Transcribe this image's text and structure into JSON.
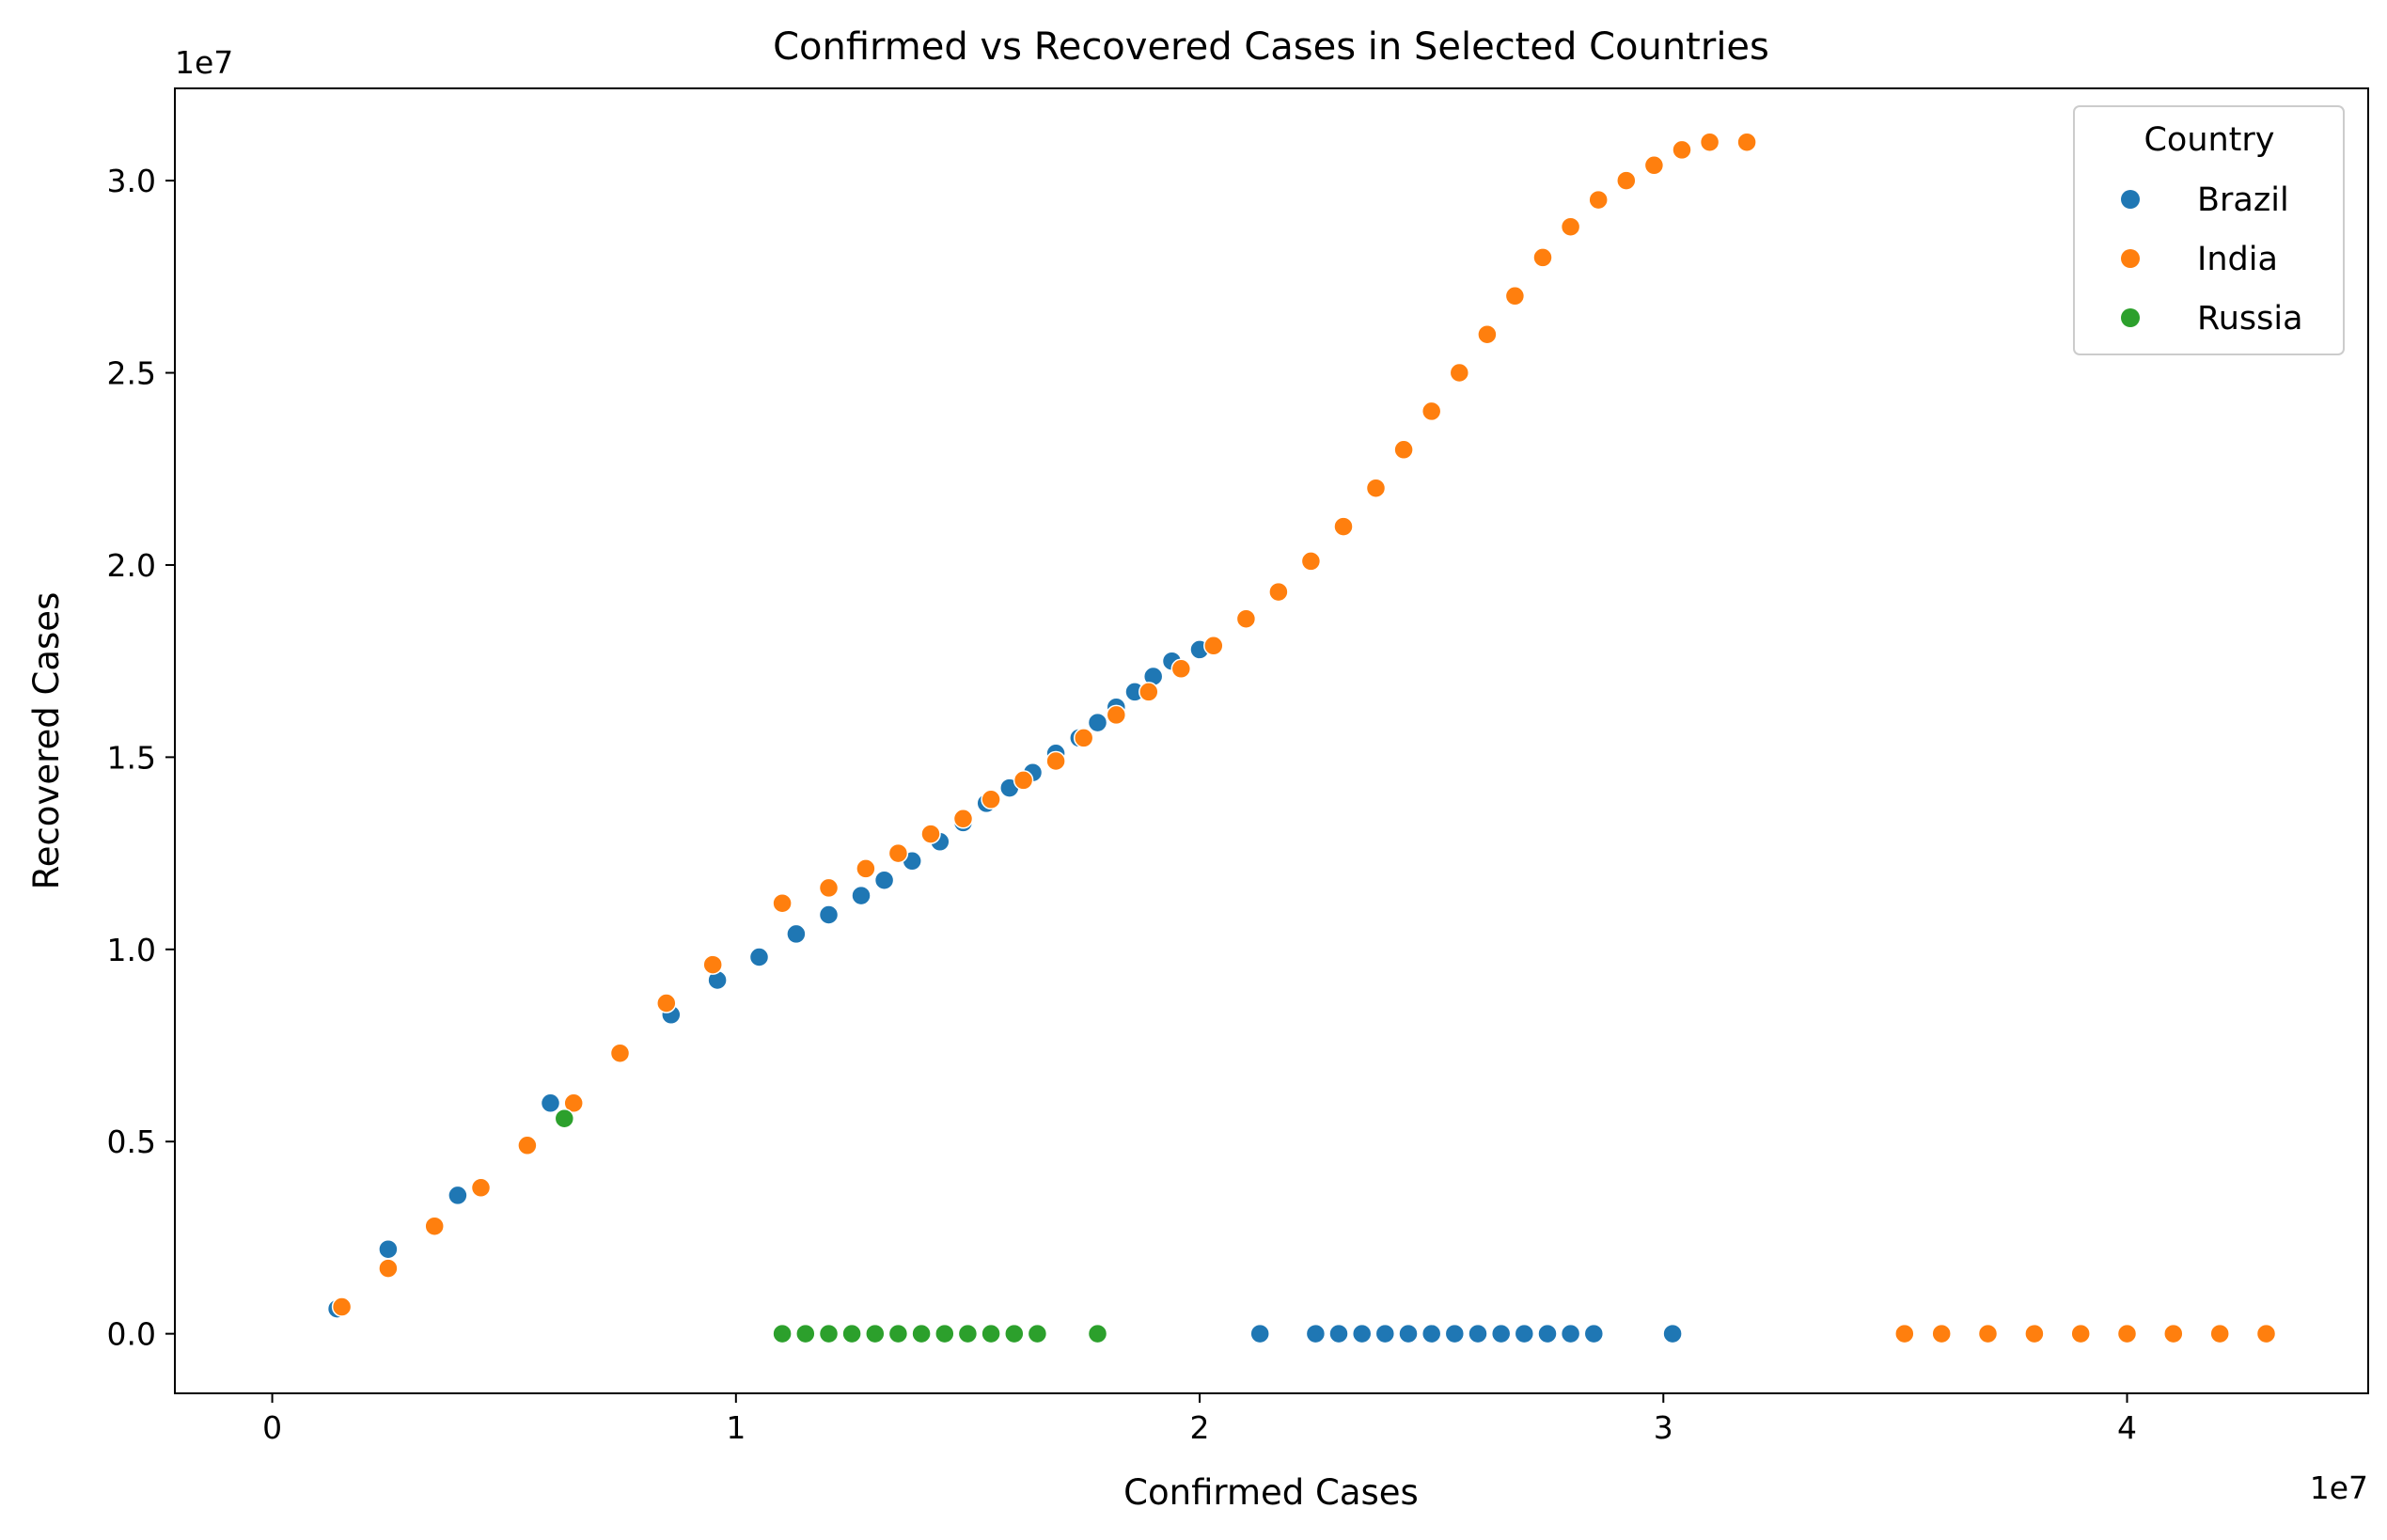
{
  "chart_data": {
    "type": "scatter",
    "title": "Confirmed vs Recovered Cases in Selected Countries",
    "xlabel": "Confirmed Cases",
    "ylabel": "Recovered Cases",
    "x_offset_text": "1e7",
    "y_offset_text": "1e7",
    "xlim": [
      -2100000,
      45200000
    ],
    "ylim": [
      -1550000,
      32400000
    ],
    "xticks": [
      0,
      10000000,
      20000000,
      30000000,
      40000000
    ],
    "xtick_labels": [
      "0",
      "1",
      "2",
      "3",
      "4"
    ],
    "yticks": [
      0,
      5000000,
      10000000,
      15000000,
      20000000,
      25000000,
      30000000
    ],
    "ytick_labels": [
      "0.0",
      "0.5",
      "1.0",
      "1.5",
      "2.0",
      "2.5",
      "3.0"
    ],
    "grid": false,
    "legend": {
      "title": "Country",
      "position": "top-right"
    },
    "series": [
      {
        "name": "Brazil",
        "color": "#1f77b4",
        "x": [
          1400000,
          2500000,
          4000000,
          6000000,
          7500000,
          8600000,
          9600000,
          10500000,
          11300000,
          12000000,
          12700000,
          13200000,
          13800000,
          14400000,
          14900000,
          15400000,
          15900000,
          16400000,
          16900000,
          17400000,
          17800000,
          18200000,
          18600000,
          19000000,
          19400000,
          20000000,
          21300000,
          22500000,
          23000000,
          23500000,
          24000000,
          24500000,
          25000000,
          25500000,
          26000000,
          26500000,
          27000000,
          27500000,
          28000000,
          28500000,
          30200000
        ],
        "y": [
          650000,
          2200000,
          3600000,
          6000000,
          7300000,
          8300000,
          9200000,
          9800000,
          10400000,
          10900000,
          11400000,
          11800000,
          12300000,
          12800000,
          13300000,
          13800000,
          14200000,
          14600000,
          15100000,
          15500000,
          15900000,
          16300000,
          16700000,
          17100000,
          17500000,
          17800000,
          0,
          0,
          0,
          0,
          0,
          0,
          0,
          0,
          0,
          0,
          0,
          0,
          0,
          0,
          0
        ]
      },
      {
        "name": "India",
        "color": "#ff7f0e",
        "x": [
          1500000,
          2500000,
          3500000,
          4500000,
          5500000,
          6500000,
          7500000,
          8500000,
          9500000,
          11000000,
          12000000,
          12800000,
          13500000,
          14200000,
          14900000,
          15500000,
          16200000,
          16900000,
          17500000,
          18200000,
          18900000,
          19600000,
          20300000,
          21000000,
          21700000,
          22400000,
          23100000,
          23800000,
          24400000,
          25000000,
          25600000,
          26200000,
          26800000,
          27400000,
          28000000,
          28600000,
          29200000,
          29800000,
          30400000,
          31000000,
          31800000,
          35200000,
          36000000,
          37000000,
          38000000,
          39000000,
          40000000,
          41000000,
          42000000,
          43000000
        ],
        "y": [
          700000,
          1700000,
          2800000,
          3800000,
          4900000,
          6000000,
          7300000,
          8600000,
          9600000,
          11200000,
          11600000,
          12100000,
          12500000,
          13000000,
          13400000,
          13900000,
          14400000,
          14900000,
          15500000,
          16100000,
          16700000,
          17300000,
          17900000,
          18600000,
          19300000,
          20100000,
          21000000,
          22000000,
          23000000,
          24000000,
          25000000,
          26000000,
          27000000,
          28000000,
          28800000,
          29500000,
          30000000,
          30400000,
          30800000,
          31000000,
          31000000,
          0,
          0,
          0,
          0,
          0,
          0,
          0,
          0,
          0
        ]
      },
      {
        "name": "Russia",
        "color": "#2ca02c",
        "x": [
          6300000,
          11000000,
          11500000,
          12000000,
          12500000,
          13000000,
          13500000,
          14000000,
          14500000,
          15000000,
          15500000,
          16000000,
          16500000,
          17800000
        ],
        "y": [
          5600000,
          0,
          0,
          0,
          0,
          0,
          0,
          0,
          0,
          0,
          0,
          0,
          0,
          0
        ]
      }
    ]
  }
}
